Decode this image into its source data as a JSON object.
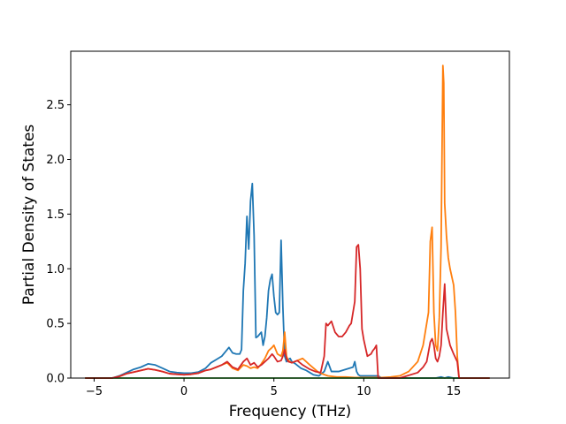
{
  "chart_data": {
    "type": "line",
    "xlabel": "Frequency (THz)",
    "ylabel": "Partial Density of States",
    "xlim": [
      -6.3,
      18.1
    ],
    "ylim": [
      0.0,
      2.99
    ],
    "xticks": [
      -5,
      0,
      5,
      10,
      15
    ],
    "xtick_labels": [
      "−5",
      "0",
      "5",
      "10",
      "15"
    ],
    "yticks": [
      0.0,
      0.5,
      1.0,
      1.5,
      2.0,
      2.5
    ],
    "ytick_labels": [
      "0.0",
      "0.5",
      "1.0",
      "1.5",
      "2.0",
      "2.5"
    ],
    "grid": false,
    "legend": "none",
    "series": [
      {
        "color": "#1f77b4",
        "x": [
          -5.5,
          -4.0,
          -3.6,
          -3.2,
          -2.8,
          -2.4,
          -2.0,
          -1.6,
          -1.2,
          -0.8,
          -0.4,
          0.0,
          0.4,
          0.8,
          1.2,
          1.5,
          1.8,
          2.1,
          2.3,
          2.5,
          2.7,
          2.9,
          3.1,
          3.2,
          3.3,
          3.4,
          3.5,
          3.6,
          3.7,
          3.8,
          3.9,
          4.0,
          4.1,
          4.2,
          4.3,
          4.4,
          4.5,
          4.6,
          4.7,
          4.8,
          4.9,
          5.0,
          5.1,
          5.2,
          5.3,
          5.4,
          5.5,
          5.6,
          5.7,
          5.8,
          5.9,
          6.0,
          6.2,
          6.5,
          6.8,
          7.0,
          7.2,
          7.5,
          7.8,
          8.0,
          8.2,
          8.4,
          8.6,
          8.8,
          9.0,
          9.2,
          9.4,
          9.5,
          9.6,
          9.7,
          9.8,
          10.0,
          10.5,
          10.8,
          11.0,
          12.0,
          13.0,
          14.0,
          14.3,
          14.5,
          14.7,
          15.0,
          17.0
        ],
        "values": [
          0.0,
          0.0,
          0.02,
          0.05,
          0.08,
          0.1,
          0.13,
          0.12,
          0.09,
          0.06,
          0.05,
          0.045,
          0.045,
          0.055,
          0.09,
          0.14,
          0.17,
          0.2,
          0.24,
          0.28,
          0.23,
          0.22,
          0.22,
          0.26,
          0.8,
          1.05,
          1.48,
          1.18,
          1.62,
          1.78,
          1.3,
          0.37,
          0.38,
          0.4,
          0.42,
          0.3,
          0.38,
          0.55,
          0.8,
          0.9,
          0.95,
          0.75,
          0.6,
          0.58,
          0.6,
          1.26,
          0.65,
          0.2,
          0.15,
          0.17,
          0.18,
          0.15,
          0.13,
          0.09,
          0.07,
          0.05,
          0.03,
          0.02,
          0.06,
          0.15,
          0.06,
          0.06,
          0.06,
          0.07,
          0.08,
          0.09,
          0.1,
          0.15,
          0.06,
          0.03,
          0.02,
          0.02,
          0.02,
          0.02,
          0.0,
          0.0,
          0.0,
          0.0,
          0.01,
          0.0,
          0.01,
          0.0,
          0.0
        ]
      },
      {
        "color": "#ff7f0e",
        "x": [
          -5.5,
          -4.0,
          -3.6,
          -3.2,
          -2.8,
          -2.4,
          -2.0,
          -1.6,
          -1.2,
          -0.8,
          -0.4,
          0.0,
          0.4,
          0.8,
          1.2,
          1.5,
          1.8,
          2.1,
          2.4,
          2.7,
          3.0,
          3.3,
          3.5,
          3.7,
          3.9,
          4.1,
          4.3,
          4.5,
          4.7,
          4.9,
          5.0,
          5.2,
          5.4,
          5.5,
          5.6,
          5.7,
          5.8,
          6.0,
          6.3,
          6.6,
          7.0,
          7.5,
          8.0,
          8.5,
          9.0,
          9.5,
          10.0,
          10.5,
          11.0,
          11.5,
          12.0,
          12.5,
          13.0,
          13.3,
          13.6,
          13.7,
          13.8,
          13.9,
          14.0,
          14.1,
          14.2,
          14.3,
          14.4,
          14.45,
          14.5,
          14.6,
          14.7,
          14.8,
          15.0,
          15.1,
          15.2,
          15.3,
          16.0,
          17.0
        ],
        "values": [
          0.0,
          0.0,
          0.015,
          0.04,
          0.055,
          0.07,
          0.085,
          0.075,
          0.06,
          0.04,
          0.035,
          0.03,
          0.035,
          0.045,
          0.07,
          0.08,
          0.1,
          0.12,
          0.14,
          0.09,
          0.07,
          0.12,
          0.11,
          0.09,
          0.1,
          0.09,
          0.13,
          0.18,
          0.25,
          0.28,
          0.3,
          0.22,
          0.2,
          0.25,
          0.42,
          0.2,
          0.16,
          0.14,
          0.16,
          0.18,
          0.12,
          0.05,
          0.02,
          0.01,
          0.01,
          0.005,
          0.005,
          0.005,
          0.005,
          0.01,
          0.02,
          0.06,
          0.15,
          0.3,
          0.6,
          1.25,
          1.38,
          0.6,
          0.3,
          0.25,
          0.55,
          1.2,
          2.86,
          2.7,
          1.6,
          1.3,
          1.1,
          1.0,
          0.85,
          0.6,
          0.2,
          0.0,
          0.0,
          0.0
        ]
      },
      {
        "color": "#2ca02c",
        "x": [
          -5.5,
          17.0
        ],
        "values": [
          0.0,
          0.0
        ]
      },
      {
        "color": "#d62728",
        "x": [
          -5.5,
          -4.0,
          -3.6,
          -3.2,
          -2.8,
          -2.4,
          -2.0,
          -1.6,
          -1.2,
          -0.8,
          -0.4,
          0.0,
          0.4,
          0.8,
          1.2,
          1.5,
          1.8,
          2.1,
          2.4,
          2.7,
          3.0,
          3.3,
          3.5,
          3.7,
          3.9,
          4.1,
          4.3,
          4.5,
          4.7,
          4.9,
          5.0,
          5.2,
          5.4,
          5.5,
          5.6,
          5.7,
          5.8,
          6.0,
          6.3,
          6.6,
          7.0,
          7.3,
          7.6,
          7.8,
          7.9,
          8.0,
          8.2,
          8.4,
          8.6,
          8.8,
          9.0,
          9.2,
          9.3,
          9.4,
          9.5,
          9.6,
          9.7,
          9.8,
          9.9,
          10.0,
          10.2,
          10.4,
          10.5,
          10.6,
          10.7,
          10.8,
          11.0,
          12.0,
          13.0,
          13.3,
          13.5,
          13.7,
          13.8,
          13.9,
          14.0,
          14.1,
          14.2,
          14.3,
          14.4,
          14.5,
          14.6,
          14.8,
          15.0,
          15.2,
          15.3,
          16.0,
          17.0
        ],
        "values": [
          0.0,
          0.0,
          0.015,
          0.04,
          0.055,
          0.07,
          0.085,
          0.075,
          0.06,
          0.04,
          0.035,
          0.03,
          0.035,
          0.045,
          0.07,
          0.08,
          0.1,
          0.12,
          0.15,
          0.1,
          0.08,
          0.15,
          0.18,
          0.12,
          0.14,
          0.1,
          0.12,
          0.15,
          0.18,
          0.22,
          0.2,
          0.15,
          0.16,
          0.2,
          0.26,
          0.18,
          0.15,
          0.14,
          0.16,
          0.12,
          0.08,
          0.06,
          0.05,
          0.2,
          0.5,
          0.48,
          0.52,
          0.42,
          0.38,
          0.38,
          0.42,
          0.48,
          0.5,
          0.6,
          0.7,
          1.2,
          1.22,
          1.0,
          0.45,
          0.35,
          0.2,
          0.22,
          0.25,
          0.27,
          0.3,
          0.0,
          0.0,
          0.0,
          0.05,
          0.1,
          0.15,
          0.33,
          0.36,
          0.3,
          0.18,
          0.15,
          0.2,
          0.3,
          0.6,
          0.86,
          0.45,
          0.3,
          0.22,
          0.15,
          0.0,
          0.0,
          0.0
        ]
      }
    ]
  }
}
